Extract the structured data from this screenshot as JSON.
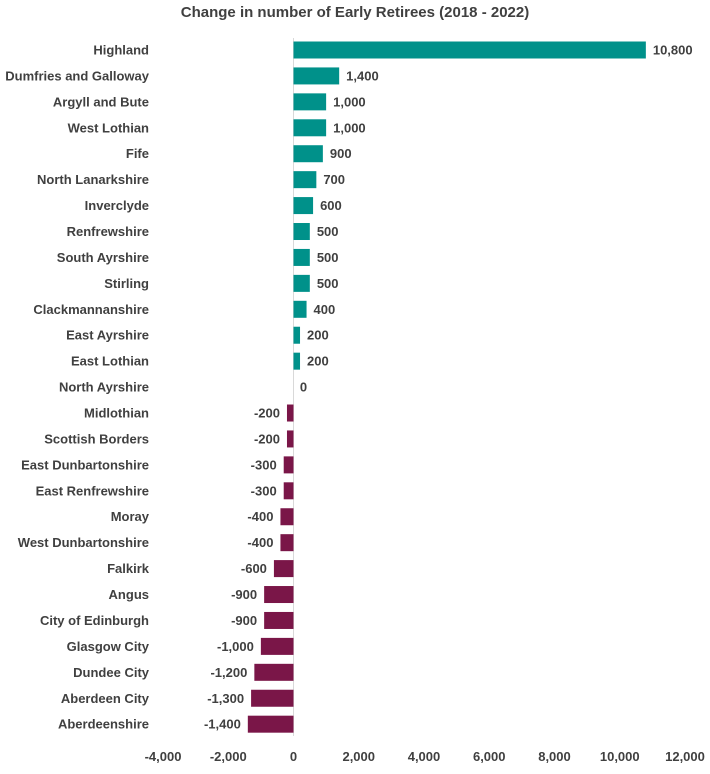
{
  "chart_data": {
    "type": "bar",
    "orientation": "horizontal",
    "title": "Change in number of Early Retirees (2018 - 2022)",
    "xlabel": "",
    "ylabel": "",
    "xlim": [
      -4000,
      12000
    ],
    "x_ticks": [
      -4000,
      -2000,
      0,
      2000,
      4000,
      6000,
      8000,
      10000,
      12000
    ],
    "x_tick_labels": [
      "-4,000",
      "-2,000",
      "0",
      "2,000",
      "4,000",
      "6,000",
      "8,000",
      "10,000",
      "12,000"
    ],
    "grid": false,
    "colors": {
      "positive": "#00918A",
      "negative": "#7A1648"
    },
    "categories": [
      "Highland",
      "Dumfries and Galloway",
      "Argyll and Bute",
      "West Lothian",
      "Fife",
      "North Lanarkshire",
      "Inverclyde",
      "Renfrewshire",
      "South Ayrshire",
      "Stirling",
      "Clackmannanshire",
      "East Ayrshire",
      "East Lothian",
      "North Ayrshire",
      "Midlothian",
      "Scottish Borders",
      "East Dunbartonshire",
      "East Renfrewshire",
      "Moray",
      "West Dunbartonshire",
      "Falkirk",
      "Angus",
      "City of Edinburgh",
      "Glasgow City",
      "Dundee City",
      "Aberdeen City",
      "Aberdeenshire"
    ],
    "values": [
      10800,
      1400,
      1000,
      1000,
      900,
      700,
      600,
      500,
      500,
      500,
      400,
      200,
      200,
      0,
      -200,
      -200,
      -300,
      -300,
      -400,
      -400,
      -600,
      -900,
      -900,
      -1000,
      -1200,
      -1300,
      -1400
    ],
    "data_labels": [
      "10,800",
      "1,400",
      "1,000",
      "1,000",
      "900",
      "700",
      "600",
      "500",
      "500",
      "500",
      "400",
      "200",
      "200",
      "0",
      "-200",
      "-200",
      "-300",
      "-300",
      "-400",
      "-400",
      "-600",
      "-900",
      "-900",
      "-1,000",
      "-1,200",
      "-1,300",
      "-1,400"
    ]
  }
}
